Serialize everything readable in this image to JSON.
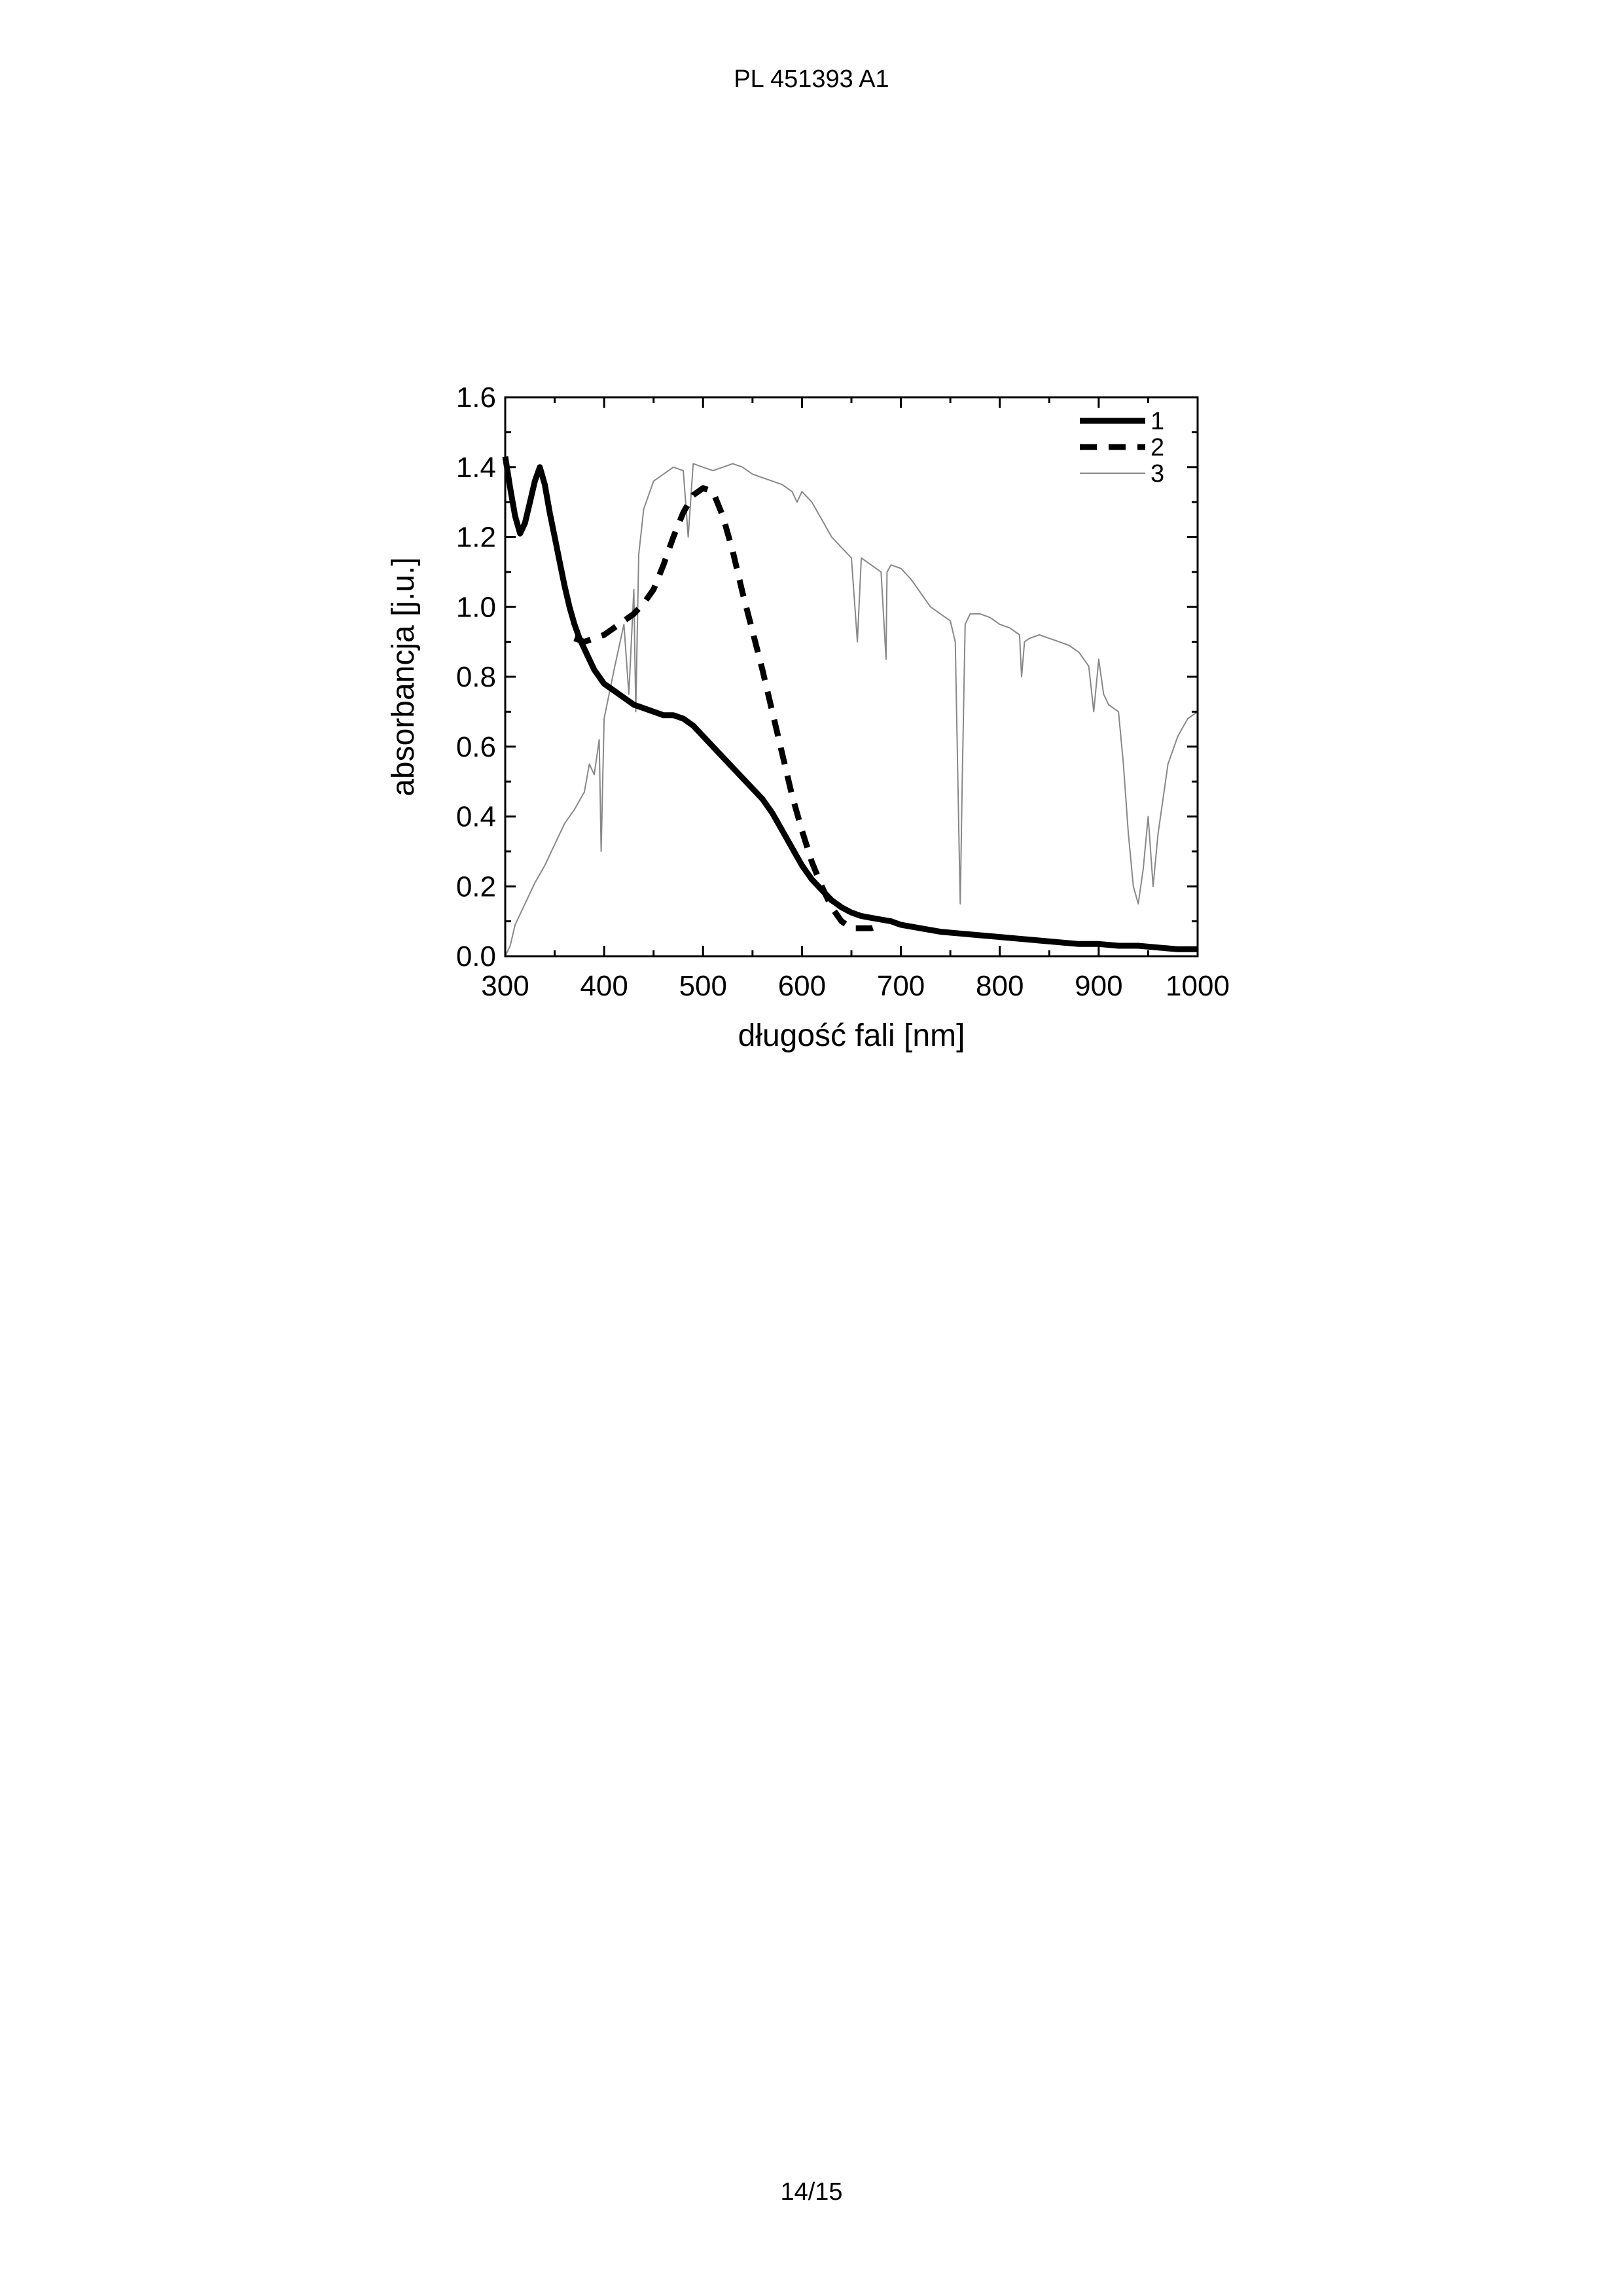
{
  "document": {
    "header": "PL 451393 A1",
    "page_number": "14/15"
  },
  "chart_data": {
    "type": "line",
    "title": "",
    "xlabel": "długość fali [nm]",
    "ylabel": "absorbancja [j.u.]",
    "xlim": [
      300,
      1000
    ],
    "ylim": [
      0.0,
      1.6
    ],
    "xticks": [
      "300",
      "400",
      "500",
      "600",
      "700",
      "800",
      "900",
      "1000"
    ],
    "yticks": [
      "0.0",
      "0.2",
      "0.4",
      "0.6",
      "0.8",
      "1.0",
      "1.2",
      "1.4",
      "1.6"
    ],
    "legend_position": "top-right",
    "grid": false,
    "series": [
      {
        "name": "1",
        "style": "thick-solid",
        "color": "#000000",
        "x": [
          300,
          305,
          310,
          315,
          320,
          325,
          330,
          335,
          340,
          345,
          350,
          355,
          360,
          365,
          370,
          375,
          380,
          390,
          400,
          410,
          420,
          430,
          440,
          450,
          460,
          470,
          480,
          490,
          500,
          510,
          520,
          530,
          540,
          550,
          560,
          570,
          580,
          590,
          600,
          610,
          620,
          630,
          640,
          650,
          660,
          670,
          680,
          690,
          700,
          720,
          740,
          760,
          780,
          800,
          820,
          840,
          860,
          880,
          900,
          920,
          940,
          960,
          980,
          1000
        ],
        "y": [
          1.43,
          1.34,
          1.26,
          1.21,
          1.24,
          1.3,
          1.36,
          1.4,
          1.35,
          1.27,
          1.2,
          1.13,
          1.06,
          1.0,
          0.95,
          0.91,
          0.88,
          0.82,
          0.78,
          0.76,
          0.74,
          0.72,
          0.71,
          0.7,
          0.69,
          0.69,
          0.68,
          0.66,
          0.63,
          0.6,
          0.57,
          0.54,
          0.51,
          0.48,
          0.45,
          0.41,
          0.36,
          0.31,
          0.26,
          0.22,
          0.19,
          0.16,
          0.14,
          0.125,
          0.115,
          0.11,
          0.105,
          0.1,
          0.09,
          0.08,
          0.07,
          0.065,
          0.06,
          0.055,
          0.05,
          0.045,
          0.04,
          0.035,
          0.035,
          0.03,
          0.03,
          0.025,
          0.02,
          0.02
        ]
      },
      {
        "name": "2",
        "style": "thick-dashed",
        "color": "#000000",
        "x": [
          370,
          380,
          390,
          400,
          410,
          420,
          430,
          440,
          450,
          460,
          470,
          480,
          490,
          500,
          510,
          520,
          530,
          540,
          550,
          560,
          570,
          580,
          590,
          600,
          610,
          620,
          630,
          640,
          650,
          660,
          670,
          680
        ],
        "y": [
          0.91,
          0.9,
          0.91,
          0.92,
          0.94,
          0.96,
          0.98,
          1.01,
          1.05,
          1.12,
          1.2,
          1.27,
          1.32,
          1.34,
          1.33,
          1.26,
          1.16,
          1.04,
          0.93,
          0.82,
          0.7,
          0.58,
          0.46,
          0.36,
          0.27,
          0.2,
          0.14,
          0.1,
          0.08,
          0.08,
          0.08,
          0.09
        ]
      },
      {
        "name": "3",
        "style": "thin-solid",
        "color": "#888888",
        "x": [
          300,
          305,
          310,
          320,
          330,
          340,
          350,
          360,
          370,
          380,
          385,
          390,
          395,
          397,
          400,
          405,
          410,
          420,
          425,
          430,
          432,
          435,
          440,
          450,
          460,
          470,
          480,
          485,
          490,
          500,
          510,
          520,
          530,
          540,
          550,
          560,
          570,
          580,
          590,
          595,
          600,
          610,
          620,
          630,
          640,
          650,
          656,
          660,
          670,
          680,
          685,
          686,
          690,
          700,
          710,
          720,
          730,
          740,
          750,
          755,
          759,
          760,
          762,
          765,
          770,
          780,
          790,
          800,
          810,
          820,
          822,
          825,
          830,
          840,
          850,
          860,
          870,
          880,
          890,
          895,
          900,
          905,
          910,
          920,
          925,
          930,
          935,
          940,
          945,
          950,
          955,
          960,
          965,
          970,
          980,
          990,
          1000
        ],
        "y": [
          0.0,
          0.03,
          0.09,
          0.15,
          0.21,
          0.26,
          0.32,
          0.38,
          0.42,
          0.47,
          0.55,
          0.52,
          0.62,
          0.3,
          0.68,
          0.75,
          0.82,
          0.95,
          0.75,
          1.05,
          0.7,
          1.15,
          1.28,
          1.36,
          1.38,
          1.4,
          1.39,
          1.2,
          1.41,
          1.4,
          1.39,
          1.4,
          1.41,
          1.4,
          1.38,
          1.37,
          1.36,
          1.35,
          1.33,
          1.3,
          1.33,
          1.3,
          1.25,
          1.2,
          1.17,
          1.14,
          0.9,
          1.14,
          1.12,
          1.1,
          0.85,
          1.1,
          1.12,
          1.11,
          1.08,
          1.04,
          1.0,
          0.98,
          0.96,
          0.9,
          0.3,
          0.15,
          0.5,
          0.95,
          0.98,
          0.98,
          0.97,
          0.95,
          0.94,
          0.92,
          0.8,
          0.9,
          0.91,
          0.92,
          0.91,
          0.9,
          0.89,
          0.87,
          0.83,
          0.7,
          0.85,
          0.75,
          0.72,
          0.7,
          0.55,
          0.35,
          0.2,
          0.15,
          0.25,
          0.4,
          0.2,
          0.35,
          0.45,
          0.55,
          0.63,
          0.68,
          0.7
        ]
      }
    ]
  }
}
